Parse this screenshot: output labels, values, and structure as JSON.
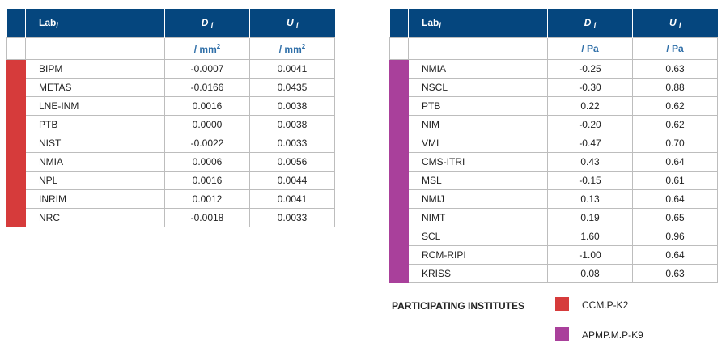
{
  "left_table": {
    "headers": {
      "lab": "Lab",
      "lab_sub": "i",
      "d": "D",
      "d_sub": "i",
      "u": "U",
      "u_sub": "i"
    },
    "units": {
      "d": "/ mm",
      "d_sup": "2",
      "u": "/ mm",
      "u_sup": "2"
    },
    "rows": [
      {
        "lab": "BIPM",
        "d": "-0.0007",
        "u": "0.0041"
      },
      {
        "lab": "METAS",
        "d": "-0.0166",
        "u": "0.0435"
      },
      {
        "lab": "LNE-INM",
        "d": "0.0016",
        "u": "0.0038"
      },
      {
        "lab": "PTB",
        "d": "0.0000",
        "u": "0.0038"
      },
      {
        "lab": "NIST",
        "d": "-0.0022",
        "u": "0.0033"
      },
      {
        "lab": "NMIA",
        "d": "0.0006",
        "u": "0.0056"
      },
      {
        "lab": "NPL",
        "d": "0.0016",
        "u": "0.0044"
      },
      {
        "lab": "INRIM",
        "d": "0.0012",
        "u": "0.0041"
      },
      {
        "lab": "NRC",
        "d": "-0.0018",
        "u": "0.0033"
      }
    ]
  },
  "right_table": {
    "headers": {
      "lab": "Lab",
      "lab_sub": "i",
      "d": "D",
      "d_sub": "i",
      "u": "U",
      "u_sub": "i"
    },
    "units": {
      "d": "/ Pa",
      "u": "/ Pa"
    },
    "rows": [
      {
        "lab": "NMIA",
        "d": "-0.25",
        "u": "0.63"
      },
      {
        "lab": "NSCL",
        "d": "-0.30",
        "u": "0.88"
      },
      {
        "lab": "PTB",
        "d": "0.22",
        "u": "0.62"
      },
      {
        "lab": "NIM",
        "d": "-0.20",
        "u": "0.62"
      },
      {
        "lab": "VMI",
        "d": "-0.47",
        "u": "0.70"
      },
      {
        "lab": "CMS-ITRI",
        "d": "0.43",
        "u": "0.64"
      },
      {
        "lab": "MSL",
        "d": "-0.15",
        "u": "0.61"
      },
      {
        "lab": "NMIJ",
        "d": "0.13",
        "u": "0.64"
      },
      {
        "lab": "NIMT",
        "d": "0.19",
        "u": "0.65"
      },
      {
        "lab": "SCL",
        "d": "1.60",
        "u": "0.96"
      },
      {
        "lab": "RCM-RIPI",
        "d": "-1.00",
        "u": "0.64"
      },
      {
        "lab": "KRISS",
        "d": "0.08",
        "u": "0.63"
      }
    ]
  },
  "legend": {
    "title": "PARTICIPATING INSTITUTES",
    "items": [
      {
        "label": "CCM.P-K2",
        "color": "#d63b3b"
      },
      {
        "label": "APMP.M.P-K9",
        "color": "#a9409b"
      }
    ]
  }
}
